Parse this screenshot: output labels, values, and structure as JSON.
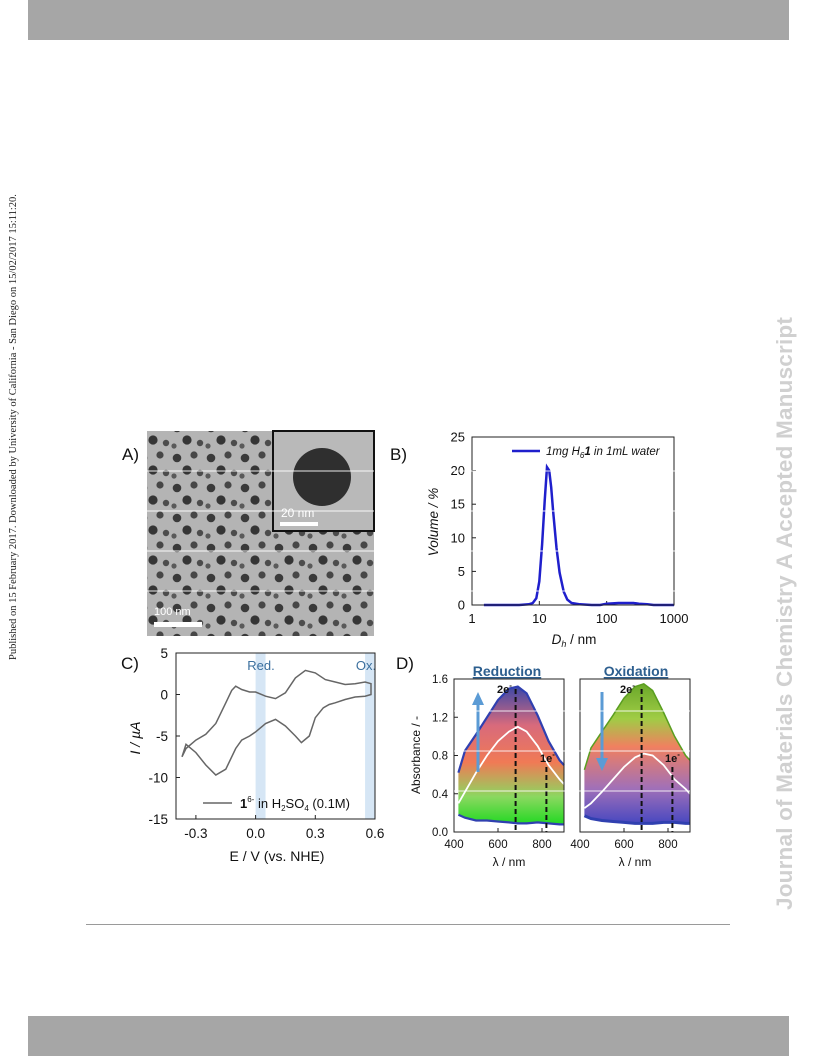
{
  "header": {
    "bar_color": "#a6a6a6"
  },
  "side_text_left": "Published on 15 February 2017. Downloaded by University of California - San Diego on 15/02/2017 15:11:20.",
  "side_text_right": "Journal of Materials Chemistry A Accepted Manuscript",
  "figure": {
    "panel_a": {
      "label": "A)",
      "scalebar_main": "100 nm",
      "scalebar_inset": "20 nm"
    },
    "panel_b": {
      "label": "B)"
    },
    "panel_c": {
      "label": "C)",
      "red_label": "Red.",
      "ox_label": "Ox."
    },
    "panel_d": {
      "label": "D)",
      "left_title": "Reduction",
      "right_title": "Oxidation",
      "annot_2e": "2e",
      "annot_1e": "1e",
      "annot_sup": "-"
    }
  },
  "chart_data": [
    {
      "type": "line",
      "panel": "B",
      "xlabel_main": "D",
      "xlabel_sub": "h",
      "xlabel_unit": " / nm",
      "ylabel": "Volume / %",
      "xscale": "log",
      "xlim": [
        1,
        1000
      ],
      "ylim": [
        0,
        25
      ],
      "xticks": [
        "1",
        "10",
        "100",
        "1000"
      ],
      "xtick_values": [
        1,
        10,
        100,
        1000
      ],
      "yticks": [
        0,
        5,
        10,
        15,
        20,
        25
      ],
      "legend": "1mg H6 1 in 1mL water",
      "legend_parts": {
        "a": "1mg H",
        "sub": "6",
        "b": "1",
        "c": " in 1mL water"
      },
      "series": [
        {
          "color": "#1f1fcc",
          "x": [
            1.5,
            5,
            7,
            8,
            9,
            10,
            11,
            12,
            13,
            14,
            15,
            16,
            18,
            20,
            23,
            26,
            30,
            40,
            60,
            80,
            100,
            150,
            200,
            250,
            300,
            400,
            500,
            1000
          ],
          "y": [
            0,
            0,
            0.1,
            0.3,
            1.0,
            3.5,
            9.0,
            15.5,
            20.5,
            20.0,
            17.5,
            14.0,
            8.5,
            4.8,
            2.0,
            0.8,
            0.3,
            0.1,
            0,
            0,
            0.2,
            0.3,
            0.3,
            0.3,
            0.2,
            0.1,
            0,
            0
          ]
        }
      ]
    },
    {
      "type": "line",
      "panel": "C",
      "xlabel": "E / V (vs. NHE)",
      "ylabel": "I / µA",
      "xlim": [
        -0.4,
        0.6
      ],
      "ylim": [
        -15,
        5
      ],
      "xticks": [
        "-0.3",
        "0.0",
        "0.3",
        "0.6"
      ],
      "xtick_values": [
        -0.3,
        0.0,
        0.3,
        0.6
      ],
      "yticks": [
        5,
        0,
        -5,
        -10,
        -15
      ],
      "legend_parts": {
        "a": "1",
        "sup": "6-",
        "b": " in H",
        "sub": "2",
        "c": "SO",
        "sub2": "4",
        "d": " (0.1M)"
      },
      "red_band": [
        0.0,
        0.05
      ],
      "ox_band": [
        0.55,
        0.6
      ],
      "series": [
        {
          "name": "cv",
          "color": "#666666",
          "x": [
            -0.37,
            -0.35,
            -0.3,
            -0.25,
            -0.2,
            -0.15,
            -0.12,
            -0.1,
            -0.07,
            -0.03,
            0.0,
            0.05,
            0.1,
            0.15,
            0.2,
            0.25,
            0.3,
            0.35,
            0.4,
            0.45,
            0.5,
            0.55,
            0.58,
            0.58,
            0.55,
            0.5,
            0.45,
            0.4,
            0.37,
            0.34,
            0.3,
            0.27,
            0.23,
            0.2,
            0.15,
            0.1,
            0.05,
            0.0,
            -0.03,
            -0.07,
            -0.1,
            -0.15,
            -0.2,
            -0.25,
            -0.3,
            -0.35,
            -0.37
          ],
          "y": [
            -7.5,
            -6.5,
            -5.5,
            -4.8,
            -3.5,
            -1.0,
            0.5,
            1.0,
            0.6,
            0.3,
            0.3,
            -0.2,
            -0.5,
            0.2,
            2.0,
            2.9,
            2.6,
            1.8,
            1.5,
            1.2,
            1.3,
            1.5,
            1.3,
            0.0,
            -0.2,
            -0.3,
            -0.6,
            -1.0,
            -1.2,
            -1.6,
            -2.8,
            -5.0,
            -5.8,
            -5.0,
            -3.8,
            -3.0,
            -3.5,
            -4.5,
            -5.0,
            -5.5,
            -6.5,
            -9.0,
            -9.7,
            -8.5,
            -7.0,
            -6.0,
            -7.5
          ]
        }
      ]
    },
    {
      "type": "line",
      "panel": "D-left",
      "title": "Reduction",
      "xlabel": "λ / nm",
      "ylabel": "Absorbance / -",
      "xlim": [
        400,
        900
      ],
      "ylim": [
        0,
        1.6
      ],
      "xticks": [
        "400",
        "600",
        "800"
      ],
      "xtick_values": [
        400,
        600,
        800
      ],
      "yticks": [
        "0.0",
        "0.4",
        "0.8",
        "1.2",
        "1.6"
      ],
      "ytick_values": [
        0.0,
        0.4,
        0.8,
        1.2,
        1.6
      ],
      "peak_2e_nm": 680,
      "peak_1e_nm": 820,
      "series": [
        {
          "name": "final",
          "color": "#3040b0",
          "x": [
            420,
            450,
            500,
            550,
            600,
            650,
            690,
            730,
            780,
            830,
            880,
            900
          ],
          "y": [
            0.62,
            0.85,
            1.02,
            1.2,
            1.38,
            1.5,
            1.52,
            1.45,
            1.22,
            0.95,
            0.75,
            0.7
          ]
        },
        {
          "name": "intermediate",
          "color": "#ffffff",
          "x": [
            420,
            450,
            500,
            550,
            600,
            650,
            690,
            730,
            780,
            830,
            880,
            900
          ],
          "y": [
            0.3,
            0.42,
            0.62,
            0.8,
            0.95,
            1.05,
            1.1,
            1.05,
            0.9,
            0.7,
            0.55,
            0.5
          ]
        },
        {
          "name": "initial",
          "color": "#3040b0",
          "x": [
            420,
            450,
            500,
            550,
            600,
            650,
            690,
            730,
            780,
            830,
            880,
            900
          ],
          "y": [
            0.18,
            0.15,
            0.12,
            0.12,
            0.11,
            0.1,
            0.09,
            0.09,
            0.1,
            0.09,
            0.08,
            0.08
          ]
        }
      ]
    },
    {
      "type": "line",
      "panel": "D-right",
      "title": "Oxidation",
      "xlabel": "λ / nm",
      "xlim": [
        400,
        900
      ],
      "ylim": [
        0,
        1.6
      ],
      "xticks": [
        "400",
        "600",
        "800"
      ],
      "xtick_values": [
        400,
        600,
        800
      ],
      "peak_2e_nm": 680,
      "peak_1e_nm": 820,
      "series": [
        {
          "name": "initial",
          "color": "#5a9e20",
          "x": [
            420,
            450,
            500,
            550,
            600,
            650,
            690,
            730,
            780,
            830,
            880,
            900
          ],
          "y": [
            0.65,
            0.88,
            1.05,
            1.22,
            1.4,
            1.52,
            1.55,
            1.48,
            1.25,
            1.0,
            0.8,
            0.75
          ]
        },
        {
          "name": "intermediate",
          "color": "#ffffff",
          "x": [
            420,
            450,
            500,
            550,
            600,
            650,
            690,
            730,
            780,
            830,
            880,
            900
          ],
          "y": [
            0.25,
            0.3,
            0.42,
            0.55,
            0.68,
            0.78,
            0.82,
            0.8,
            0.7,
            0.55,
            0.45,
            0.4
          ]
        },
        {
          "name": "final",
          "color": "#3040b0",
          "x": [
            420,
            450,
            500,
            550,
            600,
            650,
            690,
            730,
            780,
            830,
            880,
            900
          ],
          "y": [
            0.17,
            0.14,
            0.12,
            0.11,
            0.1,
            0.09,
            0.09,
            0.09,
            0.1,
            0.1,
            0.09,
            0.09
          ]
        }
      ]
    }
  ]
}
